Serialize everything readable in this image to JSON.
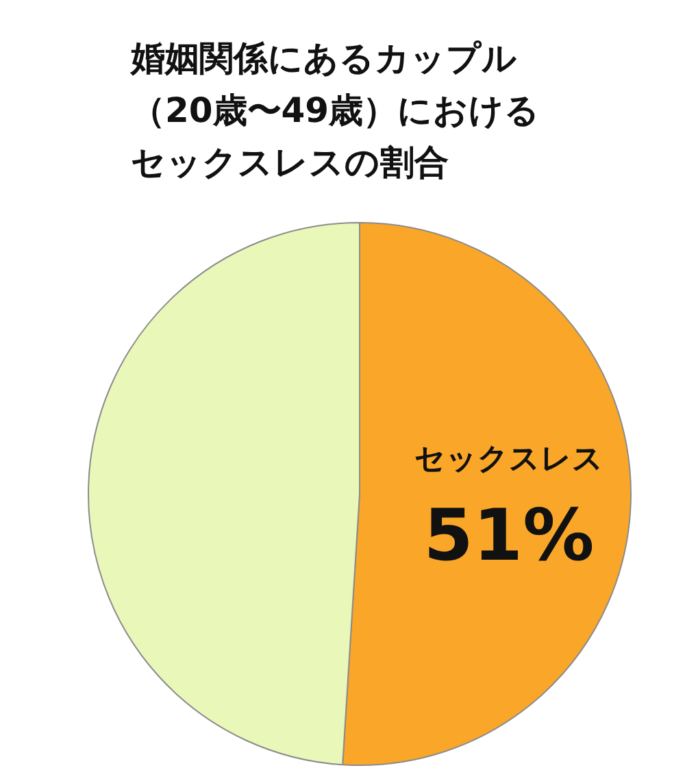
{
  "chart_data": {
    "type": "pie",
    "title": "婚姻関係にあるカップル（20歳〜49歳）におけるセックスレスの割合",
    "categories": [
      "セックスレス",
      null
    ],
    "values": [
      51,
      49
    ],
    "colors": [
      "#faa628",
      "#e9f7b9"
    ],
    "value_labels": [
      "51%",
      null
    ]
  }
}
